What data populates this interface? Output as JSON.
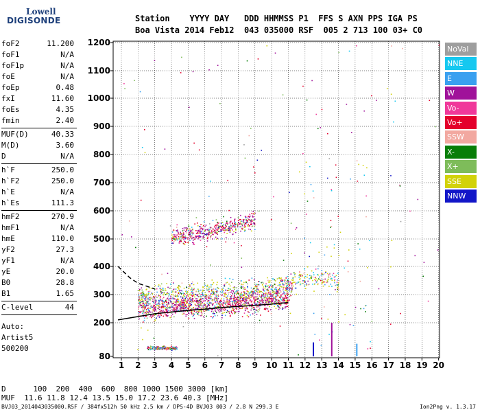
{
  "logo": {
    "line1": "Lowell",
    "line2": "DIGISONDE"
  },
  "header": {
    "labels": "Station    YYYY DAY   DDD HHMMSS P1  FFS S AXN PPS IGA PS",
    "values": "Boa Vista 2014 Feb12  043 035000 RSF  005 2 713 100 03+ C0"
  },
  "params": [
    {
      "k": "foF2",
      "v": "11.200"
    },
    {
      "k": "foF1",
      "v": "N/A"
    },
    {
      "k": "foF1p",
      "v": "N/A"
    },
    {
      "k": "foE",
      "v": "N/A"
    },
    {
      "k": "foEp",
      "v": "0.48"
    },
    {
      "k": "fxI",
      "v": "11.60"
    },
    {
      "k": "foEs",
      "v": "4.35"
    },
    {
      "k": "fmin",
      "v": "2.40"
    },
    {
      "k": "MUF(D)",
      "v": "40.33"
    },
    {
      "k": "M(D)",
      "v": "3.60"
    },
    {
      "k": "D",
      "v": "N/A"
    },
    {
      "k": "h`F",
      "v": "250.0"
    },
    {
      "k": "h`F2",
      "v": "250.0"
    },
    {
      "k": "h`E",
      "v": "N/A"
    },
    {
      "k": "h`Es",
      "v": "111.3"
    },
    {
      "k": "hmF2",
      "v": "270.9"
    },
    {
      "k": "hmF1",
      "v": "N/A"
    },
    {
      "k": "hmE",
      "v": "110.0"
    },
    {
      "k": "yF2",
      "v": "27.3"
    },
    {
      "k": "yF1",
      "v": "N/A"
    },
    {
      "k": "yE",
      "v": "20.0"
    },
    {
      "k": "B0",
      "v": "28.8"
    },
    {
      "k": "B1",
      "v": "1.65"
    },
    {
      "k": "C-level",
      "v": "44"
    }
  ],
  "auto": {
    "line1": "Auto:",
    "line2": "Artist5",
    "line3": "500200"
  },
  "bottom": {
    "d_line": "D      100  200  400  600  800 1000 1500 3000 [km]",
    "muf_line": "MUF  11.6 11.8 12.4 13.5 15.0 17.2 23.6 40.3 [MHz]"
  },
  "footer": "BVJ03_2014043035000.RSF / 384fx512h 50 kHz 2.5 km / DPS-4D BVJ03 003 / 2.8 N 299.3 E",
  "version": "Ion2Png v. 1.3.17",
  "legend": [
    {
      "label": "NoVal",
      "color": "#9e9e9e"
    },
    {
      "label": "NNE",
      "color": "#16c8f0"
    },
    {
      "label": "E",
      "color": "#3aa0f0"
    },
    {
      "label": "W",
      "color": "#a0129a"
    },
    {
      "label": "Vo-",
      "color": "#f0389a"
    },
    {
      "label": "Vo+",
      "color": "#e4002c"
    },
    {
      "label": "SSW",
      "color": "#f2a8a0"
    },
    {
      "label": "X-",
      "color": "#087e08"
    },
    {
      "label": "X+",
      "color": "#7ebc5a"
    },
    {
      "label": "SSE",
      "color": "#d2d20a"
    },
    {
      "label": "NNW",
      "color": "#1216c8"
    }
  ],
  "chart_data": {
    "type": "scatter",
    "x_ticks": [
      1,
      2,
      3,
      4,
      5,
      6,
      7,
      8,
      9,
      10,
      11,
      12,
      13,
      14,
      15,
      16,
      17,
      18,
      19,
      20
    ],
    "y_ticks": [
      80,
      200,
      300,
      400,
      500,
      600,
      700,
      800,
      900,
      1000,
      1100,
      1200
    ],
    "xlim": [
      0.8,
      20.2
    ],
    "ylim": [
      80,
      1200
    ],
    "grid": true,
    "legend_position": "right",
    "series": [
      {
        "trace": "O trace F2 (virtual height)",
        "x": [
          2.0,
          3.0,
          4.0,
          5.0,
          6.0,
          7.0,
          8.0,
          9.0,
          10.0,
          10.5,
          11.0,
          11.2
        ],
        "y": [
          255,
          258,
          260,
          262,
          265,
          268,
          272,
          278,
          285,
          292,
          300,
          320
        ]
      },
      {
        "trace": "O trace F2 2nd order",
        "x": [
          4.0,
          5.0,
          6.0,
          7.0,
          8.0,
          9.0
        ],
        "y": [
          505,
          515,
          528,
          540,
          552,
          570
        ]
      },
      {
        "trace": "X trace F2",
        "x": [
          2.0,
          4.0,
          6.0,
          8.0,
          10.0,
          11.0,
          12.0,
          13.0,
          14.0
        ],
        "y": [
          300,
          305,
          310,
          320,
          330,
          345,
          360,
          360,
          345
        ]
      },
      {
        "trace": "Es trace",
        "x": [
          2.5,
          3.0,
          3.5,
          4.0,
          4.35
        ],
        "y": [
          111,
          111,
          112,
          111,
          111
        ]
      },
      {
        "trace": "Model profile",
        "x": [
          0.8,
          2,
          3,
          4,
          5,
          6,
          7,
          8,
          9,
          10,
          11
        ],
        "y": [
          210,
          222,
          232,
          238,
          244,
          248,
          254,
          258,
          262,
          266,
          272
        ]
      },
      {
        "trace": "Model profile (dashed)",
        "x": [
          0.8,
          1.5,
          2,
          2.5,
          3
        ],
        "y": [
          400,
          360,
          340,
          330,
          320
        ]
      }
    ]
  }
}
